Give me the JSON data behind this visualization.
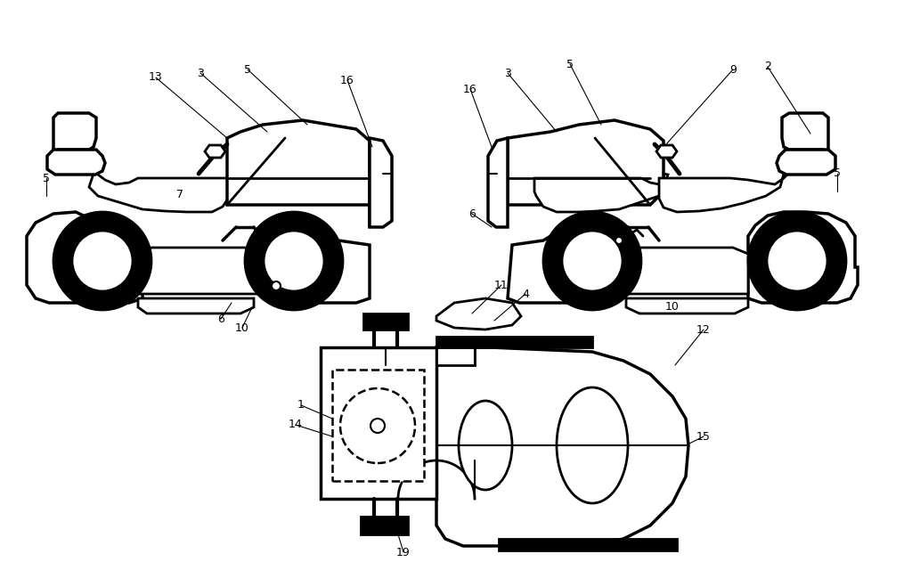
{
  "background_color": "#ffffff",
  "line_color": "#000000",
  "figsize": [
    10.24,
    6.31
  ],
  "dpi": 100
}
